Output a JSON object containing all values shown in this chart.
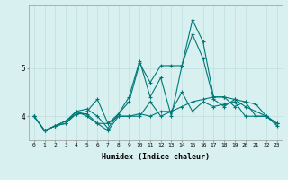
{
  "xlabel": "Humidex (Indice chaleur)",
  "ylabel": "",
  "background_color": "#d8f0f0",
  "grid_color": "#c0e0e0",
  "line_color": "#007878",
  "x": [
    0,
    1,
    2,
    3,
    4,
    5,
    6,
    7,
    8,
    9,
    10,
    11,
    12,
    13,
    14,
    15,
    16,
    17,
    18,
    19,
    20,
    21,
    22,
    23
  ],
  "series": [
    [
      4.0,
      3.7,
      3.8,
      3.9,
      4.1,
      4.0,
      3.85,
      3.7,
      4.0,
      4.0,
      4.0,
      4.3,
      4.0,
      4.1,
      4.5,
      4.1,
      4.3,
      4.2,
      4.25,
      4.3,
      4.0,
      4.0,
      4.0,
      3.8
    ],
    [
      4.0,
      3.7,
      3.8,
      3.85,
      4.1,
      4.15,
      4.0,
      3.75,
      4.05,
      4.3,
      5.1,
      4.7,
      5.05,
      5.05,
      5.05,
      5.7,
      5.2,
      4.35,
      4.2,
      4.35,
      4.3,
      4.0,
      4.0,
      3.85
    ],
    [
      4.0,
      3.7,
      3.8,
      3.9,
      4.05,
      4.1,
      4.35,
      3.85,
      4.05,
      4.4,
      5.15,
      4.4,
      4.8,
      4.0,
      5.05,
      6.0,
      5.55,
      4.4,
      4.4,
      4.2,
      4.3,
      4.25,
      4.0,
      3.85
    ],
    [
      4.0,
      3.7,
      3.8,
      3.85,
      4.05,
      4.05,
      3.85,
      3.85,
      4.0,
      4.0,
      4.05,
      4.0,
      4.1,
      4.1,
      4.2,
      4.3,
      4.35,
      4.4,
      4.4,
      4.35,
      4.2,
      4.1,
      4.0,
      3.85
    ]
  ],
  "xlim": [
    -0.5,
    23.5
  ],
  "ylim": [
    3.5,
    6.3
  ],
  "yticks": [
    4,
    5
  ],
  "xticks": [
    0,
    1,
    2,
    3,
    4,
    5,
    6,
    7,
    8,
    9,
    10,
    11,
    12,
    13,
    14,
    15,
    16,
    17,
    18,
    19,
    20,
    21,
    22,
    23
  ],
  "marker": "+",
  "markersize": 3,
  "linewidth": 0.8,
  "xlabel_fontsize": 6,
  "tick_fontsize": 4.5
}
